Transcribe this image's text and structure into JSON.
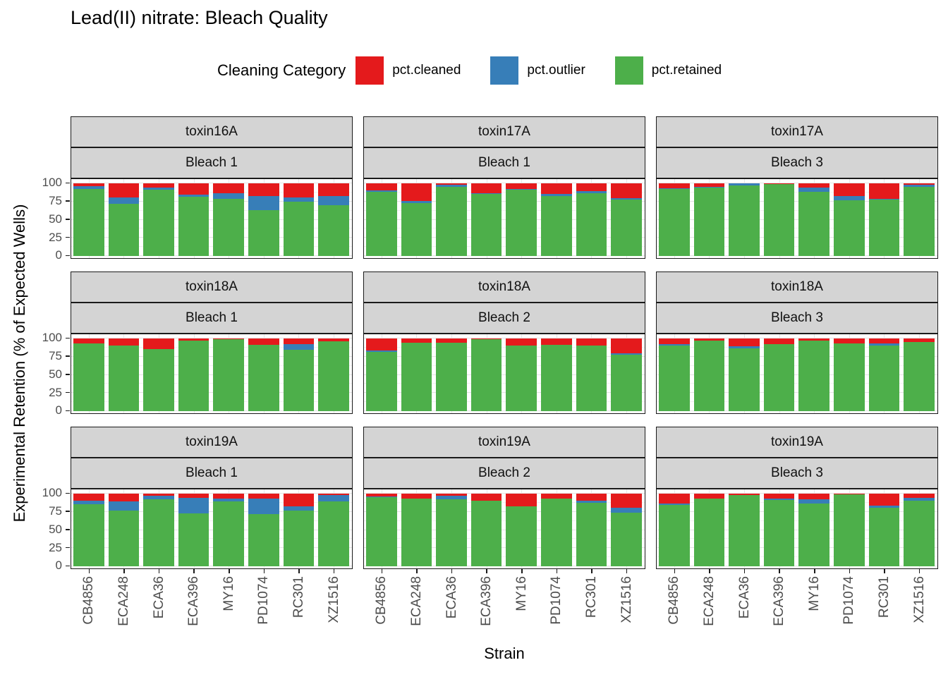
{
  "page": {
    "title": "Lead(II) nitrate: Bleach Quality"
  },
  "legend": {
    "title": "Cleaning Category",
    "entries": [
      {
        "label": "pct.cleaned",
        "color": "#E41A1C"
      },
      {
        "label": "pct.outlier",
        "color": "#377EB8"
      },
      {
        "label": "pct.retained",
        "color": "#4DAF4A"
      }
    ]
  },
  "axes": {
    "x_title": "Strain",
    "y_title": "Experimental Retention (% of Expected Wells)",
    "y_tick_labels": [
      100,
      75,
      50,
      25,
      0
    ]
  },
  "chart_data": {
    "type": "bar",
    "stacked": true,
    "orientation": "vertical",
    "title": "Lead(II) nitrate: Bleach Quality",
    "xlabel": "Strain",
    "ylabel": "Experimental Retention (% of Expected Wells)",
    "ylim": [
      0,
      100
    ],
    "y_ticks": [
      0,
      25,
      50,
      75,
      100
    ],
    "grid": "on",
    "legend_position": "top",
    "categories": [
      "CB4856",
      "ECA248",
      "ECA36",
      "ECA396",
      "MY16",
      "PD1074",
      "RC301",
      "XZ1516"
    ],
    "stack_order_bottom_to_top": [
      "pct.retained",
      "pct.outlier",
      "pct.cleaned"
    ],
    "colors": {
      "pct.cleaned": "#E41A1C",
      "pct.outlier": "#377EB8",
      "pct.retained": "#4DAF4A"
    },
    "facet_grid": {
      "rows": 3,
      "cols": 3
    },
    "facets": [
      {
        "row": 0,
        "col": 0,
        "strip_top": "toxin16A",
        "strip_bottom": "Bleach 1",
        "series": [
          {
            "name": "pct.retained",
            "values": [
              92,
              72,
              91,
              82,
              79,
              63.5,
              75,
              70
            ]
          },
          {
            "name": "pct.outlier",
            "values": [
              4,
              9,
              3,
              2.5,
              7,
              19.5,
              5.5,
              13
            ]
          },
          {
            "name": "pct.cleaned",
            "values": [
              4,
              19,
              6,
              15.5,
              14,
              17,
              19.5,
              17
            ]
          }
        ]
      },
      {
        "row": 0,
        "col": 1,
        "strip_top": "toxin17A",
        "strip_bottom": "Bleach 1",
        "series": [
          {
            "name": "pct.retained",
            "values": [
              88,
              72.5,
              95.5,
              85.5,
              91.5,
              82.5,
              86.5,
              77.5
            ]
          },
          {
            "name": "pct.outlier",
            "values": [
              2.5,
              3.5,
              2.5,
              0.5,
              0.5,
              2.5,
              2.5,
              2.5
            ]
          },
          {
            "name": "pct.cleaned",
            "values": [
              9.5,
              24,
              2,
              14,
              8,
              15,
              11,
              20
            ]
          }
        ]
      },
      {
        "row": 0,
        "col": 2,
        "strip_top": "toxin17A",
        "strip_bottom": "Bleach 3",
        "series": [
          {
            "name": "pct.retained",
            "values": [
              92,
              94.5,
              97,
              99.5,
              88,
              77,
              78,
              95.5
            ]
          },
          {
            "name": "pct.outlier",
            "values": [
              1,
              0.5,
              3,
              0,
              6.5,
              6,
              0.5,
              2.5
            ]
          },
          {
            "name": "pct.cleaned",
            "values": [
              7,
              5,
              0.5,
              0.5,
              5.5,
              17,
              21.5,
              2
            ]
          }
        ]
      },
      {
        "row": 1,
        "col": 0,
        "strip_top": "toxin18A",
        "strip_bottom": "Bleach 1",
        "series": [
          {
            "name": "pct.retained",
            "values": [
              93,
              90,
              85,
              97,
              99.5,
              91.5,
              84,
              96.5
            ]
          },
          {
            "name": "pct.outlier",
            "values": [
              0,
              0,
              0,
              0,
              0,
              0,
              8.5,
              0
            ]
          },
          {
            "name": "pct.cleaned",
            "values": [
              7,
              10,
              15,
              3,
              0.5,
              8.5,
              7.5,
              3.5
            ]
          }
        ]
      },
      {
        "row": 1,
        "col": 1,
        "strip_top": "toxin18A",
        "strip_bottom": "Bleach 2",
        "series": [
          {
            "name": "pct.retained",
            "values": [
              81.5,
              94.5,
              94.5,
              99,
              90,
              91.5,
              90.5,
              77.5
            ]
          },
          {
            "name": "pct.outlier",
            "values": [
              2.5,
              0,
              0,
              0,
              0,
              0,
              0,
              2.5
            ]
          },
          {
            "name": "pct.cleaned",
            "values": [
              16,
              5.5,
              5.5,
              1,
              10,
              8.5,
              9.5,
              20
            ]
          }
        ]
      },
      {
        "row": 1,
        "col": 2,
        "strip_top": "toxin18A",
        "strip_bottom": "Bleach 3",
        "series": [
          {
            "name": "pct.retained",
            "values": [
              90,
              97,
              86,
              92.5,
              97,
              93,
              90.5,
              95
            ]
          },
          {
            "name": "pct.outlier",
            "values": [
              2.5,
              0,
              3,
              0,
              0,
              0,
              2.5,
              0
            ]
          },
          {
            "name": "pct.cleaned",
            "values": [
              8,
              3,
              11,
              7.5,
              3,
              7,
              7,
              5
            ]
          }
        ]
      },
      {
        "row": 2,
        "col": 0,
        "strip_top": "toxin19A",
        "strip_bottom": "Bleach 1",
        "series": [
          {
            "name": "pct.retained",
            "values": [
              85,
              77,
              92.5,
              73,
              89,
              72,
              77,
              89
            ]
          },
          {
            "name": "pct.outlier",
            "values": [
              5,
              12,
              4.5,
              21.5,
              4.5,
              21,
              5.5,
              9.5
            ]
          },
          {
            "name": "pct.cleaned",
            "values": [
              10,
              11,
              3,
              5.5,
              6.5,
              7,
              17.5,
              1.5
            ]
          }
        ]
      },
      {
        "row": 2,
        "col": 1,
        "strip_top": "toxin19A",
        "strip_bottom": "Bleach 2",
        "series": [
          {
            "name": "pct.retained",
            "values": [
              95.5,
              93.5,
              92.5,
              90.5,
              82.5,
              93,
              87,
              74
            ]
          },
          {
            "name": "pct.outlier",
            "values": [
              0.5,
              0,
              4.5,
              0,
              0,
              0,
              3,
              6.5
            ]
          },
          {
            "name": "pct.cleaned",
            "values": [
              4,
              6.5,
              3,
              9.5,
              17.5,
              7,
              10,
              19.5
            ]
          }
        ]
      },
      {
        "row": 2,
        "col": 2,
        "strip_top": "toxin19A",
        "strip_bottom": "Bleach 3",
        "series": [
          {
            "name": "pct.retained",
            "values": [
              84,
              93,
              98,
              91,
              86.5,
              99,
              80.5,
              90.5
            ]
          },
          {
            "name": "pct.outlier",
            "values": [
              2.5,
              0,
              0,
              2,
              6,
              0,
              3.5,
              4
            ]
          },
          {
            "name": "pct.cleaned",
            "values": [
              14,
              7,
              2,
              7,
              7.5,
              1,
              16,
              5.5
            ]
          }
        ]
      }
    ]
  }
}
